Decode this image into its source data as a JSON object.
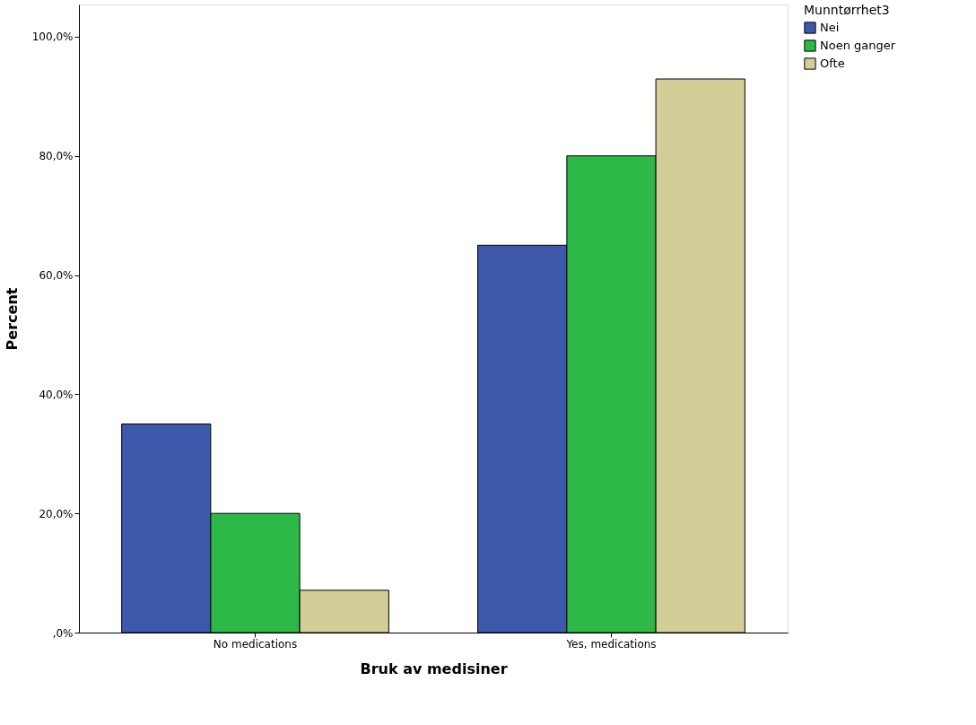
{
  "chart_data": {
    "type": "bar",
    "xlabel": "Bruk av  medisiner",
    "ylabel": "Percent",
    "legend_title": "Munntørrhet3",
    "categories": [
      "No medications",
      "Yes, medications"
    ],
    "series": [
      {
        "name": "Nei",
        "color": "#3e58ac",
        "values": [
          35,
          65
        ]
      },
      {
        "name": "Noen ganger",
        "color": "#2eb848",
        "values": [
          20,
          80
        ]
      },
      {
        "name": "Ofte",
        "color": "#d3ce97",
        "values": [
          7.1,
          92.9
        ]
      }
    ],
    "ylim": [
      0,
      105.4
    ],
    "yticks": [
      {
        "value": 0,
        "label": ",0%"
      },
      {
        "value": 20,
        "label": "20,0%"
      },
      {
        "value": 40,
        "label": "40,0%"
      },
      {
        "value": 60,
        "label": "60,0%"
      },
      {
        "value": 80,
        "label": "80,0%"
      },
      {
        "value": 100,
        "label": "100,0%"
      }
    ],
    "grid": false,
    "legend": "top right"
  }
}
